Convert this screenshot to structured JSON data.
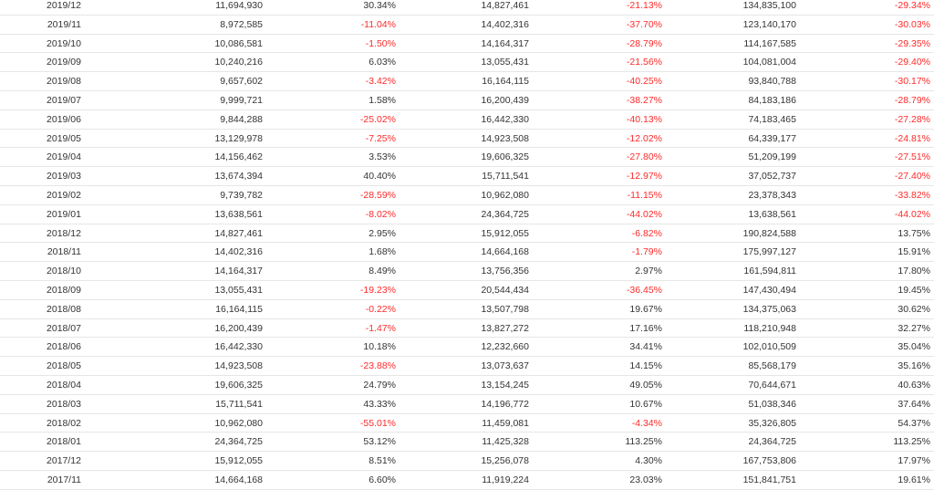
{
  "table": {
    "rows": [
      {
        "month": "2019/12",
        "v1": "11,694,930",
        "p1": "30.34%",
        "v2": "14,827,461",
        "p2": "-21.13%",
        "v3": "134,835,100",
        "p3": "-29.34%"
      },
      {
        "month": "2019/11",
        "v1": "8,972,585",
        "p1": "-11.04%",
        "v2": "14,402,316",
        "p2": "-37.70%",
        "v3": "123,140,170",
        "p3": "-30.03%"
      },
      {
        "month": "2019/10",
        "v1": "10,086,581",
        "p1": "-1.50%",
        "v2": "14,164,317",
        "p2": "-28.79%",
        "v3": "114,167,585",
        "p3": "-29.35%"
      },
      {
        "month": "2019/09",
        "v1": "10,240,216",
        "p1": "6.03%",
        "v2": "13,055,431",
        "p2": "-21.56%",
        "v3": "104,081,004",
        "p3": "-29.40%"
      },
      {
        "month": "2019/08",
        "v1": "9,657,602",
        "p1": "-3.42%",
        "v2": "16,164,115",
        "p2": "-40.25%",
        "v3": "93,840,788",
        "p3": "-30.17%"
      },
      {
        "month": "2019/07",
        "v1": "9,999,721",
        "p1": "1.58%",
        "v2": "16,200,439",
        "p2": "-38.27%",
        "v3": "84,183,186",
        "p3": "-28.79%"
      },
      {
        "month": "2019/06",
        "v1": "9,844,288",
        "p1": "-25.02%",
        "v2": "16,442,330",
        "p2": "-40.13%",
        "v3": "74,183,465",
        "p3": "-27.28%"
      },
      {
        "month": "2019/05",
        "v1": "13,129,978",
        "p1": "-7.25%",
        "v2": "14,923,508",
        "p2": "-12.02%",
        "v3": "64,339,177",
        "p3": "-24.81%"
      },
      {
        "month": "2019/04",
        "v1": "14,156,462",
        "p1": "3.53%",
        "v2": "19,606,325",
        "p2": "-27.80%",
        "v3": "51,209,199",
        "p3": "-27.51%"
      },
      {
        "month": "2019/03",
        "v1": "13,674,394",
        "p1": "40.40%",
        "v2": "15,711,541",
        "p2": "-12.97%",
        "v3": "37,052,737",
        "p3": "-27.40%"
      },
      {
        "month": "2019/02",
        "v1": "9,739,782",
        "p1": "-28.59%",
        "v2": "10,962,080",
        "p2": "-11.15%",
        "v3": "23,378,343",
        "p3": "-33.82%"
      },
      {
        "month": "2019/01",
        "v1": "13,638,561",
        "p1": "-8.02%",
        "v2": "24,364,725",
        "p2": "-44.02%",
        "v3": "13,638,561",
        "p3": "-44.02%"
      },
      {
        "month": "2018/12",
        "v1": "14,827,461",
        "p1": "2.95%",
        "v2": "15,912,055",
        "p2": "-6.82%",
        "v3": "190,824,588",
        "p3": "13.75%"
      },
      {
        "month": "2018/11",
        "v1": "14,402,316",
        "p1": "1.68%",
        "v2": "14,664,168",
        "p2": "-1.79%",
        "v3": "175,997,127",
        "p3": "15.91%"
      },
      {
        "month": "2018/10",
        "v1": "14,164,317",
        "p1": "8.49%",
        "v2": "13,756,356",
        "p2": "2.97%",
        "v3": "161,594,811",
        "p3": "17.80%"
      },
      {
        "month": "2018/09",
        "v1": "13,055,431",
        "p1": "-19.23%",
        "v2": "20,544,434",
        "p2": "-36.45%",
        "v3": "147,430,494",
        "p3": "19.45%"
      },
      {
        "month": "2018/08",
        "v1": "16,164,115",
        "p1": "-0.22%",
        "v2": "13,507,798",
        "p2": "19.67%",
        "v3": "134,375,063",
        "p3": "30.62%"
      },
      {
        "month": "2018/07",
        "v1": "16,200,439",
        "p1": "-1.47%",
        "v2": "13,827,272",
        "p2": "17.16%",
        "v3": "118,210,948",
        "p3": "32.27%"
      },
      {
        "month": "2018/06",
        "v1": "16,442,330",
        "p1": "10.18%",
        "v2": "12,232,660",
        "p2": "34.41%",
        "v3": "102,010,509",
        "p3": "35.04%"
      },
      {
        "month": "2018/05",
        "v1": "14,923,508",
        "p1": "-23.88%",
        "v2": "13,073,637",
        "p2": "14.15%",
        "v3": "85,568,179",
        "p3": "35.16%"
      },
      {
        "month": "2018/04",
        "v1": "19,606,325",
        "p1": "24.79%",
        "v2": "13,154,245",
        "p2": "49.05%",
        "v3": "70,644,671",
        "p3": "40.63%"
      },
      {
        "month": "2018/03",
        "v1": "15,711,541",
        "p1": "43.33%",
        "v2": "14,196,772",
        "p2": "10.67%",
        "v3": "51,038,346",
        "p3": "37.64%"
      },
      {
        "month": "2018/02",
        "v1": "10,962,080",
        "p1": "-55.01%",
        "v2": "11,459,081",
        "p2": "-4.34%",
        "v3": "35,326,805",
        "p3": "54.37%"
      },
      {
        "month": "2018/01",
        "v1": "24,364,725",
        "p1": "53.12%",
        "v2": "11,425,328",
        "p2": "113.25%",
        "v3": "24,364,725",
        "p3": "113.25%"
      },
      {
        "month": "2017/12",
        "v1": "15,912,055",
        "p1": "8.51%",
        "v2": "15,256,078",
        "p2": "4.30%",
        "v3": "167,753,806",
        "p3": "17.97%"
      },
      {
        "month": "2017/11",
        "v1": "14,664,168",
        "p1": "6.60%",
        "v2": "11,919,224",
        "p2": "23.03%",
        "v3": "151,841,751",
        "p3": "19.61%"
      }
    ]
  },
  "colors": {
    "negative": "#ff2a2a",
    "text": "#333333",
    "row_border": "#e6e6e6"
  }
}
